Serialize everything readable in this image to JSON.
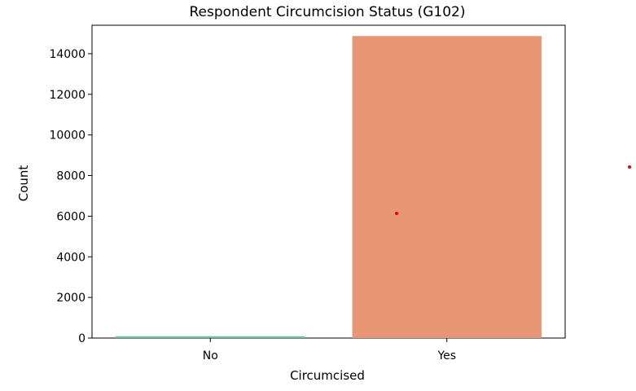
{
  "chart_data": {
    "type": "bar",
    "title": "Respondent Circumcision Status (G102)",
    "xlabel": "Circumcised",
    "ylabel": "Count",
    "categories": [
      "No",
      "Yes"
    ],
    "values": [
      90,
      14870
    ],
    "ylim": [
      0,
      15400
    ],
    "yticks": [
      0,
      2000,
      4000,
      6000,
      8000,
      10000,
      12000,
      14000
    ],
    "ytick_labels": [
      "0",
      "2000",
      "4000",
      "6000",
      "8000",
      "10000",
      "12000",
      "14000"
    ],
    "bar_colors": [
      "#66c2a5",
      "#e99675"
    ],
    "grid": false,
    "legend": "none"
  },
  "markers": {
    "color": "#e8000b"
  }
}
